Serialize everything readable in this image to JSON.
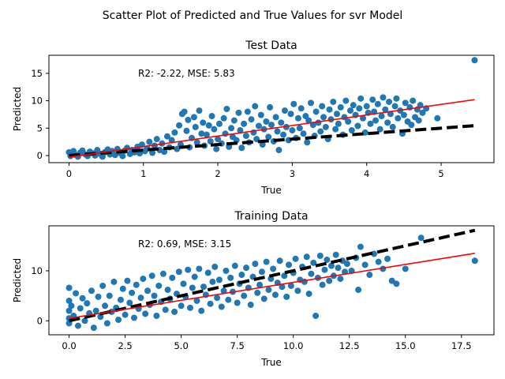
{
  "figure": {
    "suptitle": "Scatter Plot of Predicted and True Values for svr Model"
  },
  "chart_data": [
    {
      "type": "scatter",
      "title": "Test Data",
      "xlabel": "True",
      "ylabel": "Predicted",
      "xlim": [
        -0.27,
        5.71
      ],
      "ylim": [
        -1.3,
        18.3
      ],
      "xticks": [
        0,
        1,
        2,
        3,
        4,
        5
      ],
      "yticks": [
        0,
        5,
        10,
        15
      ],
      "xtick_labels": [
        "0",
        "1",
        "2",
        "3",
        "4",
        "5"
      ],
      "ytick_labels": [
        "0",
        "5",
        "10",
        "15"
      ],
      "annotation": "R2: -2.22, MSE: 5.83",
      "grid": false,
      "point_color": "#1f77b4",
      "fit_line_color": "#ff0000",
      "reference_line_color": "#000000",
      "fit_line": {
        "x": [
          0,
          5.45
        ],
        "y": [
          -0.3,
          10.2
        ]
      },
      "reference_line": {
        "x": [
          0,
          5.45
        ],
        "y": [
          0,
          5.45
        ]
      },
      "points": [
        [
          0,
          0.6
        ],
        [
          0.02,
          -0.1
        ],
        [
          0.04,
          0.3
        ],
        [
          0.06,
          0.8
        ],
        [
          0.09,
          0.1
        ],
        [
          0.12,
          -0.2
        ],
        [
          0.15,
          0.5
        ],
        [
          0.18,
          0.9
        ],
        [
          0.22,
          0.2
        ],
        [
          0.25,
          -0.1
        ],
        [
          0.28,
          0.7
        ],
        [
          0.32,
          0.4
        ],
        [
          0.35,
          0.0
        ],
        [
          0.38,
          1.0
        ],
        [
          0.42,
          0.3
        ],
        [
          0.45,
          -0.2
        ],
        [
          0.48,
          0.6
        ],
        [
          0.52,
          1.1
        ],
        [
          0.55,
          0.2
        ],
        [
          0.58,
          0.8
        ],
        [
          0.62,
          0.1
        ],
        [
          0.65,
          1.2
        ],
        [
          0.68,
          0.5
        ],
        [
          0.72,
          -0.1
        ],
        [
          0.75,
          0.9
        ],
        [
          0.78,
          1.4
        ],
        [
          0.82,
          0.3
        ],
        [
          0.85,
          1.0
        ],
        [
          0.88,
          0.6
        ],
        [
          0.92,
          1.6
        ],
        [
          0.95,
          0.4
        ],
        [
          0.98,
          2.0
        ],
        [
          1.02,
          0.8
        ],
        [
          1.05,
          1.3
        ],
        [
          1.08,
          2.5
        ],
        [
          1.12,
          0.5
        ],
        [
          1.15,
          1.8
        ],
        [
          1.18,
          3.0
        ],
        [
          1.22,
          1.0
        ],
        [
          1.25,
          2.2
        ],
        [
          1.28,
          0.7
        ],
        [
          1.32,
          3.5
        ],
        [
          1.35,
          1.5
        ],
        [
          1.38,
          2.8
        ],
        [
          1.42,
          4.2
        ],
        [
          1.45,
          1.2
        ],
        [
          1.48,
          5.5
        ],
        [
          1.5,
          2.0
        ],
        [
          1.52,
          7.6
        ],
        [
          1.55,
          8.0
        ],
        [
          1.58,
          4.5
        ],
        [
          1.6,
          6.5
        ],
        [
          1.62,
          1.5
        ],
        [
          1.65,
          3.2
        ],
        [
          1.68,
          7.0
        ],
        [
          1.7,
          5.2
        ],
        [
          1.72,
          2.4
        ],
        [
          1.75,
          8.2
        ],
        [
          1.78,
          4.0
        ],
        [
          1.8,
          6.0
        ],
        [
          1.82,
          1.8
        ],
        [
          1.85,
          3.8
        ],
        [
          1.88,
          5.5
        ],
        [
          1.9,
          2.6
        ],
        [
          1.92,
          7.2
        ],
        [
          1.95,
          4.8
        ],
        [
          1.98,
          1.2
        ],
        [
          2.0,
          3.0
        ],
        [
          2.02,
          5.8
        ],
        [
          2.05,
          2.2
        ],
        [
          2.08,
          6.8
        ],
        [
          2.1,
          4.0
        ],
        [
          2.12,
          8.5
        ],
        [
          2.15,
          1.6
        ],
        [
          2.18,
          5.0
        ],
        [
          2.2,
          3.4
        ],
        [
          2.22,
          6.4
        ],
        [
          2.25,
          2.8
        ],
        [
          2.28,
          7.8
        ],
        [
          2.3,
          4.6
        ],
        [
          2.32,
          1.4
        ],
        [
          2.35,
          5.8
        ],
        [
          2.38,
          3.6
        ],
        [
          2.4,
          8.0
        ],
        [
          2.42,
          2.4
        ],
        [
          2.45,
          6.6
        ],
        [
          2.48,
          4.2
        ],
        [
          2.5,
          9.0
        ],
        [
          2.52,
          3.0
        ],
        [
          2.55,
          5.4
        ],
        [
          2.58,
          7.4
        ],
        [
          2.6,
          2.0
        ],
        [
          2.62,
          4.8
        ],
        [
          2.65,
          6.2
        ],
        [
          2.68,
          3.4
        ],
        [
          2.7,
          8.8
        ],
        [
          2.72,
          5.6
        ],
        [
          2.75,
          2.6
        ],
        [
          2.78,
          7.0
        ],
        [
          2.8,
          4.4
        ],
        [
          2.82,
          1.0
        ],
        [
          2.85,
          6.0
        ],
        [
          2.88,
          3.8
        ],
        [
          2.9,
          8.2
        ],
        [
          2.92,
          5.2
        ],
        [
          2.95,
          2.8
        ],
        [
          2.98,
          7.6
        ],
        [
          3.0,
          4.6
        ],
        [
          3.02,
          9.4
        ],
        [
          3.05,
          3.2
        ],
        [
          3.08,
          6.8
        ],
        [
          3.1,
          5.0
        ],
        [
          3.12,
          8.6
        ],
        [
          3.15,
          4.0
        ],
        [
          3.18,
          7.2
        ],
        [
          3.2,
          2.4
        ],
        [
          3.22,
          6.4
        ],
        [
          3.25,
          9.6
        ],
        [
          3.28,
          5.6
        ],
        [
          3.3,
          3.6
        ],
        [
          3.32,
          8.0
        ],
        [
          3.35,
          6.0
        ],
        [
          3.38,
          4.4
        ],
        [
          3.4,
          9.0
        ],
        [
          3.42,
          7.0
        ],
        [
          3.45,
          5.2
        ],
        [
          3.48,
          3.0
        ],
        [
          3.5,
          8.4
        ],
        [
          3.52,
          6.6
        ],
        [
          3.55,
          9.8
        ],
        [
          3.58,
          4.8
        ],
        [
          3.6,
          7.6
        ],
        [
          3.62,
          5.8
        ],
        [
          3.65,
          8.8
        ],
        [
          3.68,
          3.8
        ],
        [
          3.7,
          7.0
        ],
        [
          3.72,
          10.0
        ],
        [
          3.75,
          6.2
        ],
        [
          3.78,
          8.2
        ],
        [
          3.8,
          4.6
        ],
        [
          3.82,
          9.2
        ],
        [
          3.85,
          7.4
        ],
        [
          3.88,
          5.4
        ],
        [
          3.9,
          8.6
        ],
        [
          3.92,
          10.4
        ],
        [
          3.95,
          6.8
        ],
        [
          3.98,
          4.2
        ],
        [
          4.0,
          9.0
        ],
        [
          4.02,
          7.8
        ],
        [
          4.05,
          5.8
        ],
        [
          4.08,
          10.2
        ],
        [
          4.1,
          8.0
        ],
        [
          4.12,
          6.4
        ],
        [
          4.15,
          9.4
        ],
        [
          4.18,
          4.8
        ],
        [
          4.2,
          7.2
        ],
        [
          4.22,
          10.6
        ],
        [
          4.25,
          8.4
        ],
        [
          4.28,
          6.0
        ],
        [
          4.3,
          9.8
        ],
        [
          4.32,
          7.6
        ],
        [
          4.35,
          5.2
        ],
        [
          4.38,
          9.0
        ],
        [
          4.4,
          10.4
        ],
        [
          4.42,
          6.8
        ],
        [
          4.45,
          8.2
        ],
        [
          4.48,
          4.0
        ],
        [
          4.5,
          7.4
        ],
        [
          4.52,
          9.6
        ],
        [
          4.55,
          6.2
        ],
        [
          4.58,
          8.8
        ],
        [
          4.6,
          5.6
        ],
        [
          4.62,
          10.0
        ],
        [
          4.65,
          7.0
        ],
        [
          4.68,
          8.4
        ],
        [
          4.7,
          6.4
        ],
        [
          4.72,
          9.2
        ],
        [
          4.75,
          7.8
        ],
        [
          4.8,
          8.6
        ],
        [
          4.95,
          6.8
        ],
        [
          5.45,
          17.4
        ]
      ]
    },
    {
      "type": "scatter",
      "title": "Training Data",
      "xlabel": "True",
      "ylabel": "Predicted",
      "xlim": [
        -0.9,
        18.95
      ],
      "ylim": [
        -2.8,
        19.0
      ],
      "xticks": [
        0,
        2.5,
        5,
        7.5,
        10,
        12.5,
        15,
        17.5
      ],
      "yticks": [
        0,
        10
      ],
      "xtick_labels": [
        "0.0",
        "2.5",
        "5.0",
        "7.5",
        "10.0",
        "12.5",
        "15.0",
        "17.5"
      ],
      "ytick_labels": [
        "0",
        "10"
      ],
      "annotation": "R2: 0.69, MSE: 3.15",
      "grid": false,
      "point_color": "#1f77b4",
      "fit_line_color": "#ff0000",
      "reference_line_color": "#000000",
      "fit_line": {
        "x": [
          0,
          18.1
        ],
        "y": [
          0.5,
          13.5
        ]
      },
      "reference_line": {
        "x": [
          0,
          18.1
        ],
        "y": [
          0,
          18.1
        ]
      },
      "points": [
        [
          0,
          6.6
        ],
        [
          0,
          4.0
        ],
        [
          0,
          2.0
        ],
        [
          0,
          0.5
        ],
        [
          0,
          -0.5
        ],
        [
          0.1,
          3.0
        ],
        [
          0.2,
          1.0
        ],
        [
          0.3,
          5.5
        ],
        [
          0.4,
          -1.0
        ],
        [
          0.5,
          2.5
        ],
        [
          0.6,
          4.5
        ],
        [
          0.7,
          0.0
        ],
        [
          0.8,
          3.5
        ],
        [
          0.9,
          1.5
        ],
        [
          1.0,
          6.0
        ],
        [
          1.1,
          -1.4
        ],
        [
          1.2,
          2.0
        ],
        [
          1.3,
          4.8
        ],
        [
          1.4,
          0.8
        ],
        [
          1.5,
          7.0
        ],
        [
          1.6,
          3.0
        ],
        [
          1.7,
          -0.5
        ],
        [
          1.8,
          5.0
        ],
        [
          1.9,
          1.8
        ],
        [
          2.0,
          7.8
        ],
        [
          2.1,
          2.6
        ],
        [
          2.2,
          0.2
        ],
        [
          2.3,
          4.2
        ],
        [
          2.4,
          6.4
        ],
        [
          2.5,
          1.2
        ],
        [
          2.6,
          8.0
        ],
        [
          2.7,
          3.6
        ],
        [
          2.8,
          5.6
        ],
        [
          2.9,
          0.6
        ],
        [
          3.0,
          7.2
        ],
        [
          3.1,
          2.4
        ],
        [
          3.2,
          4.6
        ],
        [
          3.3,
          8.4
        ],
        [
          3.4,
          1.4
        ],
        [
          3.5,
          6.0
        ],
        [
          3.6,
          3.2
        ],
        [
          3.7,
          9.0
        ],
        [
          3.8,
          5.0
        ],
        [
          3.9,
          1.0
        ],
        [
          4.0,
          7.0
        ],
        [
          4.1,
          3.8
        ],
        [
          4.2,
          9.4
        ],
        [
          4.3,
          2.2
        ],
        [
          4.4,
          6.2
        ],
        [
          4.5,
          4.4
        ],
        [
          4.6,
          8.6
        ],
        [
          4.7,
          1.8
        ],
        [
          4.8,
          5.4
        ],
        [
          4.9,
          9.8
        ],
        [
          5.0,
          3.0
        ],
        [
          5.1,
          7.4
        ],
        [
          5.2,
          4.8
        ],
        [
          5.3,
          10.2
        ],
        [
          5.4,
          2.6
        ],
        [
          5.5,
          6.6
        ],
        [
          5.6,
          8.8
        ],
        [
          5.7,
          4.0
        ],
        [
          5.8,
          10.4
        ],
        [
          5.9,
          2.0
        ],
        [
          6.0,
          6.8
        ],
        [
          6.1,
          5.2
        ],
        [
          6.2,
          9.6
        ],
        [
          6.3,
          3.4
        ],
        [
          6.4,
          7.8
        ],
        [
          6.5,
          10.8
        ],
        [
          6.6,
          4.6
        ],
        [
          6.7,
          8.2
        ],
        [
          6.8,
          2.8
        ],
        [
          6.9,
          6.0
        ],
        [
          7.0,
          10.0
        ],
        [
          7.1,
          4.2
        ],
        [
          7.2,
          8.6
        ],
        [
          7.3,
          5.8
        ],
        [
          7.4,
          11.0
        ],
        [
          7.5,
          3.6
        ],
        [
          7.6,
          7.4
        ],
        [
          7.7,
          9.2
        ],
        [
          7.8,
          5.0
        ],
        [
          7.9,
          10.6
        ],
        [
          8.0,
          6.6
        ],
        [
          8.1,
          3.2
        ],
        [
          8.2,
          8.8
        ],
        [
          8.3,
          11.4
        ],
        [
          8.4,
          5.6
        ],
        [
          8.5,
          7.2
        ],
        [
          8.6,
          9.8
        ],
        [
          8.7,
          4.4
        ],
        [
          8.8,
          11.8
        ],
        [
          8.9,
          6.2
        ],
        [
          9.0,
          8.4
        ],
        [
          9.1,
          10.4
        ],
        [
          9.2,
          5.2
        ],
        [
          9.3,
          7.6
        ],
        [
          9.4,
          12.0
        ],
        [
          9.5,
          6.8
        ],
        [
          9.6,
          9.0
        ],
        [
          9.7,
          4.8
        ],
        [
          9.8,
          11.2
        ],
        [
          9.9,
          7.0
        ],
        [
          10.0,
          9.6
        ],
        [
          10.1,
          12.4
        ],
        [
          10.2,
          6.0
        ],
        [
          10.3,
          8.2
        ],
        [
          10.4,
          10.8
        ],
        [
          10.5,
          7.8
        ],
        [
          10.6,
          12.8
        ],
        [
          10.7,
          5.4
        ],
        [
          10.8,
          9.4
        ],
        [
          10.9,
          11.6
        ],
        [
          11.0,
          1.0
        ],
        [
          11.1,
          8.6
        ],
        [
          11.2,
          13.0
        ],
        [
          11.3,
          7.2
        ],
        [
          11.4,
          10.2
        ],
        [
          11.5,
          12.2
        ],
        [
          11.6,
          8.0
        ],
        [
          11.7,
          11.0
        ],
        [
          11.8,
          9.0
        ],
        [
          11.9,
          13.2
        ],
        [
          12.0,
          10.6
        ],
        [
          12.1,
          8.4
        ],
        [
          12.2,
          12.0
        ],
        [
          12.3,
          9.8
        ],
        [
          12.4,
          11.4
        ],
        [
          12.6,
          10.0
        ],
        [
          12.8,
          12.6
        ],
        [
          12.9,
          6.2
        ],
        [
          13.0,
          14.8
        ],
        [
          13.2,
          11.2
        ],
        [
          13.4,
          9.2
        ],
        [
          13.6,
          13.4
        ],
        [
          13.8,
          11.8
        ],
        [
          14.0,
          10.4
        ],
        [
          14.2,
          12.4
        ],
        [
          14.4,
          8.0
        ],
        [
          14.6,
          7.4
        ],
        [
          15.0,
          10.4
        ],
        [
          15.7,
          16.6
        ],
        [
          18.1,
          12.0
        ]
      ]
    }
  ]
}
